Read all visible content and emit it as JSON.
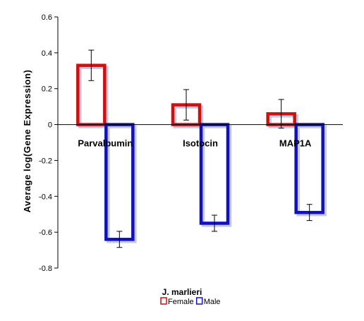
{
  "chart_data": {
    "type": "bar",
    "categories": [
      "Parvalbumin",
      "Isotocin",
      "MAP1A"
    ],
    "series": [
      {
        "name": "Female",
        "color": "#cc1111",
        "values": [
          0.33,
          0.11,
          0.06
        ],
        "errors": [
          0.085,
          0.085,
          0.08
        ]
      },
      {
        "name": "Male",
        "color": "#1111bb",
        "values": [
          -0.64,
          -0.55,
          -0.49
        ],
        "errors": [
          0.045,
          0.045,
          0.045
        ]
      }
    ],
    "xlabel": "J. marlieri",
    "ylabel": "Average log(Gene Expression)",
    "ylim": [
      -0.8,
      0.6
    ],
    "yticks": [
      "0.6",
      "0.4",
      "0.2",
      "0",
      "-0.2",
      "-0.4",
      "-0.6",
      "-0.8"
    ],
    "ytick_values": [
      0.6,
      0.4,
      0.2,
      0,
      -0.2,
      -0.4,
      -0.6,
      -0.8
    ],
    "legend_position": "bottom",
    "grid": false
  }
}
